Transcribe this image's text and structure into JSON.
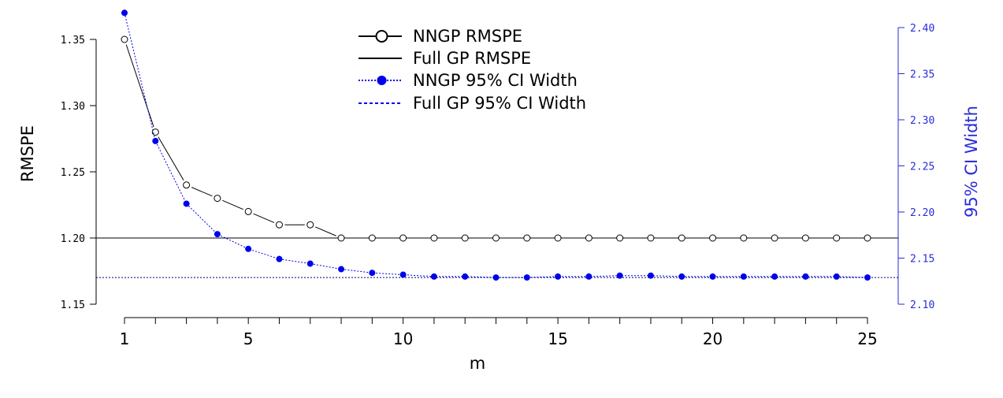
{
  "chart_data": {
    "type": "line",
    "xlabel": "m",
    "ylabel": "RMSPE",
    "y2label": "95% CI Width",
    "xlim": [
      1,
      25
    ],
    "ylim": [
      1.15,
      1.35
    ],
    "y2lim": [
      2.1,
      2.4
    ],
    "x_ticks_major": [
      1,
      5,
      10,
      15,
      20,
      25
    ],
    "y_ticks": [
      "1.15",
      "1.20",
      "1.25",
      "1.30",
      "1.35"
    ],
    "y2_ticks": [
      "2.10",
      "2.15",
      "2.20",
      "2.25",
      "2.30",
      "2.35",
      "2.40"
    ],
    "legend_position": "top-center",
    "grid": false,
    "x": [
      1,
      2,
      3,
      4,
      5,
      6,
      7,
      8,
      9,
      10,
      11,
      12,
      13,
      14,
      15,
      16,
      17,
      18,
      19,
      20,
      21,
      22,
      23,
      24,
      25
    ],
    "series": [
      {
        "name": "NNGP RMSPE",
        "axis": "left",
        "style": "open-circle-line",
        "color": "#000000",
        "values": [
          1.35,
          1.28,
          1.24,
          1.23,
          1.22,
          1.21,
          1.21,
          1.2,
          1.2,
          1.2,
          1.2,
          1.2,
          1.2,
          1.2,
          1.2,
          1.2,
          1.2,
          1.2,
          1.2,
          1.2,
          1.2,
          1.2,
          1.2,
          1.2,
          1.2
        ]
      },
      {
        "name": "Full GP RMSPE",
        "axis": "left",
        "style": "solid-hline",
        "color": "#000000",
        "value": 1.2
      },
      {
        "name": "NNGP 95% CI Width",
        "axis": "right",
        "style": "filled-dot-dotted-line",
        "color": "#0000ee",
        "values": [
          2.416,
          2.277,
          2.209,
          2.176,
          2.16,
          2.149,
          2.144,
          2.138,
          2.134,
          2.132,
          2.13,
          2.13,
          2.129,
          2.129,
          2.13,
          2.13,
          2.131,
          2.131,
          2.13,
          2.13,
          2.13,
          2.13,
          2.13,
          2.13,
          2.129
        ]
      },
      {
        "name": "Full GP 95% CI Width",
        "axis": "right",
        "style": "dashed-hline",
        "color": "#0000ee",
        "value": 2.129
      }
    ]
  }
}
